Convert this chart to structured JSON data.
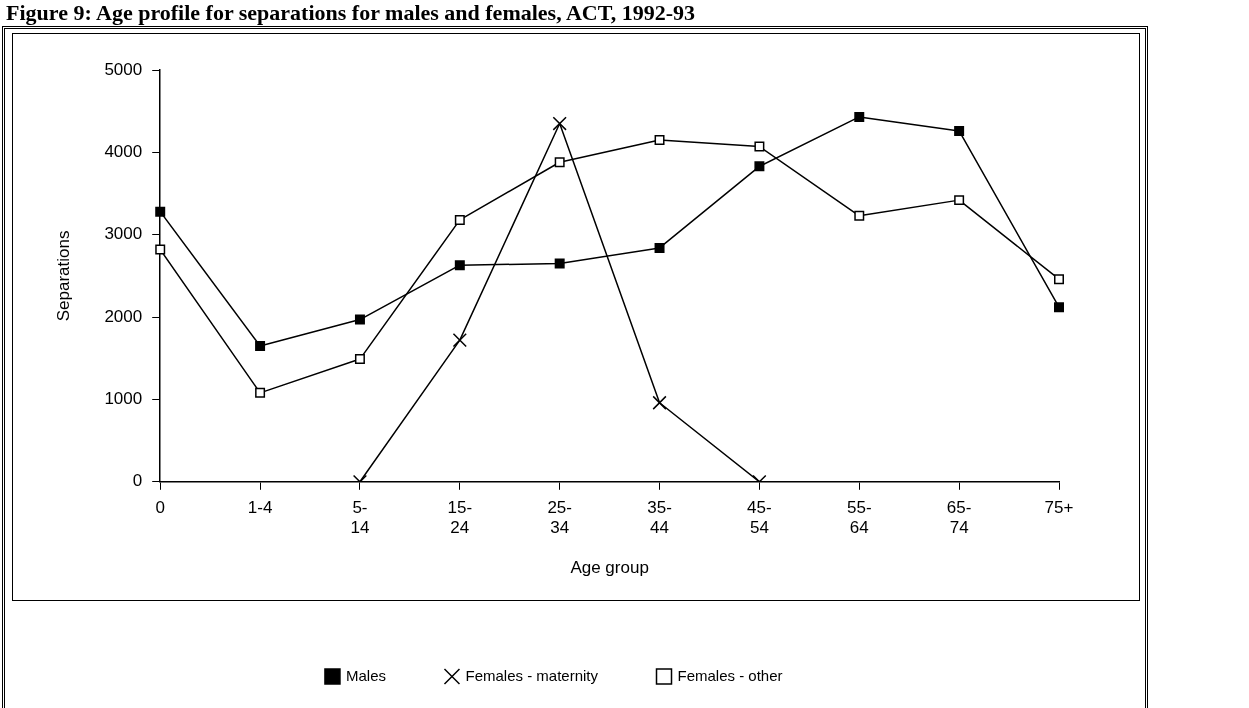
{
  "chart_data": {
    "type": "line",
    "title": "Figure 9: Age profile for separations for males and females, ACT, 1992-93",
    "xlabel": "Age group",
    "ylabel": "Separations",
    "categories": [
      "0",
      "1-4",
      "5-14",
      "15-24",
      "25-34",
      "35-44",
      "45-54",
      "55-64",
      "65-74",
      "75+"
    ],
    "ylim": [
      0,
      5000
    ],
    "yticks": [
      0,
      1000,
      2000,
      3000,
      4000,
      5000
    ],
    "grid": false,
    "legend": "bottom",
    "line_style": "solid",
    "series": [
      {
        "name": "Males",
        "color": "#000000",
        "marker": "square",
        "values": [
          3280,
          1650,
          1970,
          2630,
          2650,
          2840,
          3830,
          4430,
          4260,
          2120
        ]
      },
      {
        "name": "Females - maternity",
        "color": "#000000",
        "marker": "cross",
        "values": [
          null,
          null,
          0,
          1720,
          4350,
          960,
          0,
          null,
          null,
          null
        ]
      },
      {
        "name": "Females - other",
        "color": "#000000",
        "marker": "square",
        "values": [
          2820,
          1080,
          1490,
          3180,
          3880,
          4150,
          4070,
          3230,
          3420,
          2460
        ]
      }
    ]
  }
}
